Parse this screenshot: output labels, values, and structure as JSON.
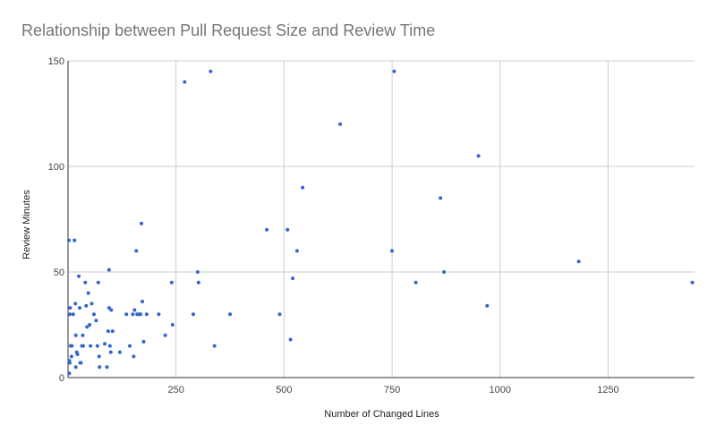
{
  "chart_data": {
    "type": "scatter",
    "title": "Relationship between Pull Request Size and Review Time",
    "xlabel": "Number of Changed Lines",
    "ylabel": "Review Minutes",
    "xlim": [
      0,
      1450
    ],
    "ylim": [
      0,
      150
    ],
    "x_ticks": [
      250,
      500,
      750,
      1000,
      1250
    ],
    "y_ticks": [
      0,
      50,
      100,
      150
    ],
    "grid": true,
    "legend": "none",
    "point_color": "#3366cc",
    "points": [
      [
        2,
        65
      ],
      [
        4,
        30
      ],
      [
        5,
        33
      ],
      [
        3,
        8
      ],
      [
        4,
        7
      ],
      [
        6,
        15
      ],
      [
        3,
        2
      ],
      [
        8,
        10
      ],
      [
        9,
        15
      ],
      [
        15,
        65
      ],
      [
        12,
        30
      ],
      [
        18,
        20
      ],
      [
        17,
        35
      ],
      [
        20,
        12
      ],
      [
        22,
        11
      ],
      [
        18,
        5
      ],
      [
        25,
        48
      ],
      [
        27,
        33
      ],
      [
        30,
        7
      ],
      [
        32,
        15
      ],
      [
        34,
        20
      ],
      [
        35,
        15
      ],
      [
        28,
        7
      ],
      [
        40,
        45
      ],
      [
        42,
        34
      ],
      [
        44,
        24
      ],
      [
        47,
        40
      ],
      [
        50,
        25
      ],
      [
        52,
        15
      ],
      [
        55,
        35
      ],
      [
        60,
        30
      ],
      [
        65,
        27
      ],
      [
        68,
        15
      ],
      [
        70,
        45
      ],
      [
        72,
        10
      ],
      [
        73,
        5
      ],
      [
        85,
        16
      ],
      [
        90,
        5
      ],
      [
        93,
        22
      ],
      [
        95,
        51
      ],
      [
        95,
        33
      ],
      [
        97,
        15
      ],
      [
        99,
        12
      ],
      [
        100,
        32
      ],
      [
        103,
        22
      ],
      [
        120,
        12
      ],
      [
        135,
        30
      ],
      [
        143,
        15
      ],
      [
        150,
        30
      ],
      [
        152,
        10
      ],
      [
        154,
        32
      ],
      [
        158,
        60
      ],
      [
        160,
        30
      ],
      [
        163,
        30
      ],
      [
        165,
        30
      ],
      [
        168,
        30
      ],
      [
        170,
        73
      ],
      [
        172,
        36
      ],
      [
        175,
        17
      ],
      [
        182,
        30
      ],
      [
        210,
        30
      ],
      [
        225,
        20
      ],
      [
        240,
        45
      ],
      [
        242,
        25
      ],
      [
        270,
        140
      ],
      [
        290,
        30
      ],
      [
        300,
        50
      ],
      [
        302,
        45
      ],
      [
        330,
        145
      ],
      [
        339,
        15
      ],
      [
        375,
        30
      ],
      [
        460,
        70
      ],
      [
        490,
        30
      ],
      [
        508,
        70
      ],
      [
        515,
        18
      ],
      [
        520,
        47
      ],
      [
        530,
        60
      ],
      [
        543,
        90
      ],
      [
        630,
        120
      ],
      [
        750,
        60
      ],
      [
        755,
        145
      ],
      [
        805,
        45
      ],
      [
        862,
        85
      ],
      [
        870,
        50
      ],
      [
        950,
        105
      ],
      [
        970,
        34
      ],
      [
        1182,
        55
      ],
      [
        1445,
        45
      ]
    ]
  }
}
